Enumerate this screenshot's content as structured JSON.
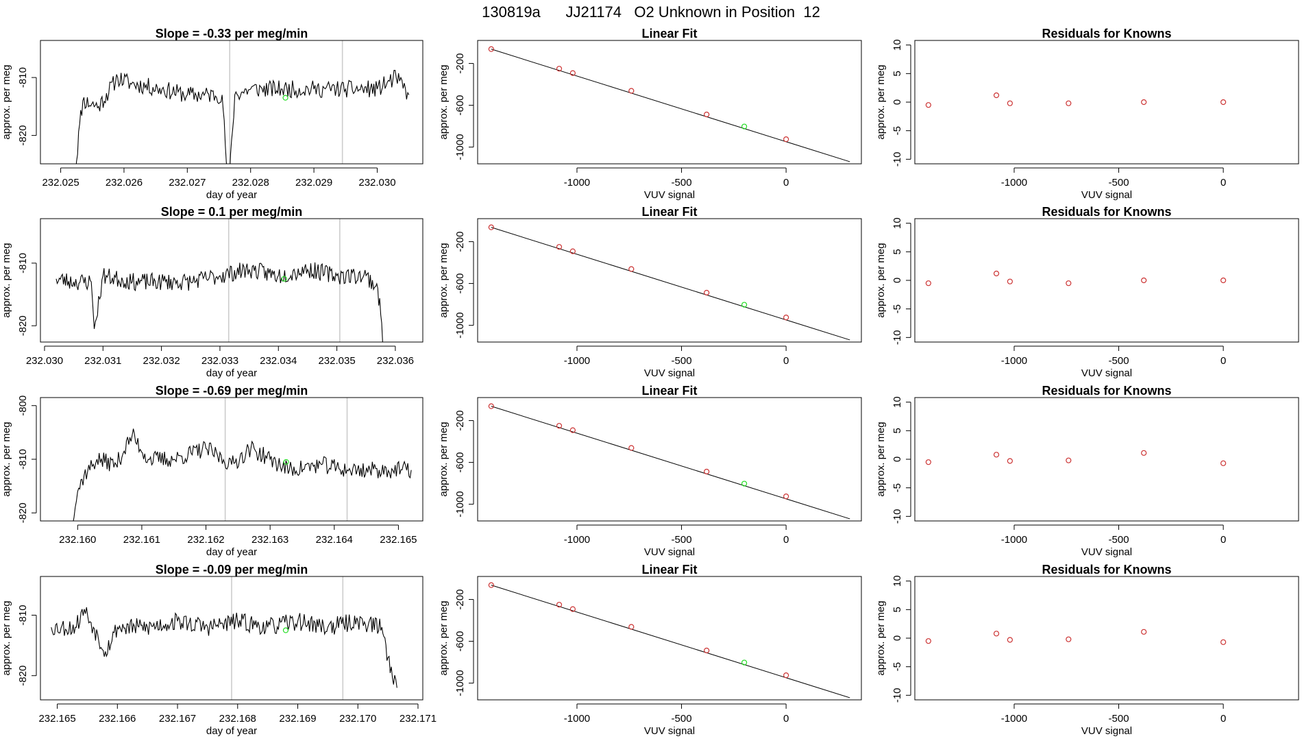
{
  "figure": {
    "title": "130819a      JJ21174   O2 Unknown in Position  12"
  },
  "chart_data": [
    {
      "type": "line",
      "panel": "time-series",
      "row": 0,
      "title": "Slope =  -0.33  per meg/min",
      "xlabel": "day of year",
      "ylabel": "approx. per meg",
      "xlim": [
        232.02468,
        232.03072
      ],
      "ylim": [
        -824.9,
        -803.6
      ],
      "x_ticks": [
        232.025,
        232.026,
        232.027,
        232.028,
        232.029,
        232.03
      ],
      "x_tick_labels": [
        "232.025",
        "232.026",
        "232.027",
        "232.028",
        "232.029",
        "232.030"
      ],
      "y_ticks": [
        -820,
        -810
      ],
      "y_tick_labels": [
        "-820",
        "-810"
      ],
      "gray_vlines": [
        232.02767,
        232.02945
      ],
      "trace_anchors": [
        [
          232.0252,
          -830
        ],
        [
          232.0253,
          -818
        ],
        [
          232.02535,
          -814
        ],
        [
          232.0256,
          -815
        ],
        [
          232.0259,
          -810
        ],
        [
          232.0261,
          -811
        ],
        [
          232.0266,
          -812
        ],
        [
          232.027,
          -813
        ],
        [
          232.02755,
          -813
        ],
        [
          232.02765,
          -830
        ],
        [
          232.02775,
          -813
        ],
        [
          232.028,
          -812
        ],
        [
          232.0285,
          -812
        ],
        [
          232.029,
          -812
        ],
        [
          232.0295,
          -812
        ],
        [
          232.03,
          -812
        ],
        [
          232.0303,
          -810
        ],
        [
          232.0305,
          -813
        ]
      ],
      "trace_seed": 11,
      "noise": 1.5,
      "marker": {
        "x": 232.02855,
        "y": -813.5,
        "color": "#22dd22"
      }
    },
    {
      "type": "scatter",
      "panel": "linear-fit",
      "row": 0,
      "title": "Linear Fit",
      "xlabel": "VUV signal",
      "ylabel": "approx. per meg",
      "xlim": [
        -1475,
        360
      ],
      "ylim": [
        -1160,
        20
      ],
      "x_ticks": [
        -1000,
        -500,
        0
      ],
      "x_tick_labels": [
        "-1000",
        "-500",
        "0"
      ],
      "y_ticks": [
        -1000,
        -600,
        -200
      ],
      "y_tick_labels": [
        "-1000",
        "-600",
        "-200"
      ],
      "fit_line": {
        "x": [
          -1410,
          305
        ],
        "y": [
          -63,
          -1140
        ]
      },
      "points": [
        {
          "x": -1410,
          "y": -63
        },
        {
          "x": -1085,
          "y": -250
        },
        {
          "x": -1020,
          "y": -292
        },
        {
          "x": -740,
          "y": -462
        },
        {
          "x": -380,
          "y": -688
        },
        {
          "x": -200,
          "y": -803
        },
        {
          "x": 0,
          "y": -925
        }
      ],
      "point_colors": [
        "#cc3333",
        "#cc3333",
        "#cc3333",
        "#cc3333",
        "#cc3333",
        "#22dd22",
        "#cc3333"
      ]
    },
    {
      "type": "scatter",
      "panel": "residuals",
      "row": 0,
      "title": "Residuals for Knowns",
      "xlabel": "VUV signal",
      "ylabel": "approx. per meg",
      "xlim": [
        -1475,
        360
      ],
      "ylim": [
        -10.8,
        10.8
      ],
      "x_ticks": [
        -1000,
        -500,
        0
      ],
      "x_tick_labels": [
        "-1000",
        "-500",
        "0"
      ],
      "y_ticks": [
        -10,
        -5,
        0,
        5,
        10
      ],
      "y_tick_labels": [
        "-10",
        "-5",
        "0",
        "5",
        "10"
      ],
      "points": [
        {
          "x": -1410,
          "y": -0.5
        },
        {
          "x": -1085,
          "y": 1.2
        },
        {
          "x": -1020,
          "y": -0.2
        },
        {
          "x": -740,
          "y": -0.2
        },
        {
          "x": -380,
          "y": 0.0
        },
        {
          "x": 0,
          "y": 0.0
        }
      ],
      "point_color": "#cc3333"
    },
    {
      "type": "line",
      "panel": "time-series",
      "row": 1,
      "title": "Slope =  0.1  per meg/min",
      "xlabel": "day of year",
      "ylabel": "approx. per meg",
      "xlim": [
        232.02993,
        232.03647
      ],
      "ylim": [
        -822.6,
        -802.9
      ],
      "x_ticks": [
        232.03,
        232.031,
        232.032,
        232.033,
        232.034,
        232.035,
        232.036
      ],
      "x_tick_labels": [
        "232.030",
        "232.031",
        "232.032",
        "232.033",
        "232.034",
        "232.035",
        "232.036"
      ],
      "y_ticks": [
        -820,
        -810
      ],
      "y_tick_labels": [
        "-820",
        "-810"
      ],
      "gray_vlines": [
        232.03315,
        232.03505
      ],
      "trace_anchors": [
        [
          232.0302,
          -812.5
        ],
        [
          232.0305,
          -813
        ],
        [
          232.0308,
          -813
        ],
        [
          232.03085,
          -820.5
        ],
        [
          232.031,
          -812
        ],
        [
          232.0315,
          -813
        ],
        [
          232.032,
          -813
        ],
        [
          232.0325,
          -813
        ],
        [
          232.033,
          -812
        ],
        [
          232.0335,
          -811
        ],
        [
          232.034,
          -812
        ],
        [
          232.0345,
          -811
        ],
        [
          232.035,
          -812
        ],
        [
          232.0355,
          -812
        ],
        [
          232.0357,
          -814
        ],
        [
          232.0358,
          -823
        ]
      ],
      "trace_seed": 23,
      "noise": 1.4,
      "marker": {
        "x": 232.0341,
        "y": -812.5,
        "color": "#22dd22"
      }
    },
    {
      "type": "scatter",
      "panel": "linear-fit",
      "row": 1,
      "title": "Linear Fit",
      "xlabel": "VUV signal",
      "ylabel": "approx. per meg",
      "xlim": [
        -1475,
        360
      ],
      "ylim": [
        -1160,
        20
      ],
      "x_ticks": [
        -1000,
        -500,
        0
      ],
      "x_tick_labels": [
        "-1000",
        "-500",
        "0"
      ],
      "y_ticks": [
        -1000,
        -600,
        -200
      ],
      "y_tick_labels": [
        "-1000",
        "-600",
        "-200"
      ],
      "fit_line": {
        "x": [
          -1410,
          305
        ],
        "y": [
          -63,
          -1140
        ]
      },
      "points": [
        {
          "x": -1410,
          "y": -63
        },
        {
          "x": -1085,
          "y": -250
        },
        {
          "x": -1020,
          "y": -292
        },
        {
          "x": -740,
          "y": -462
        },
        {
          "x": -380,
          "y": -688
        },
        {
          "x": -200,
          "y": -803
        },
        {
          "x": 0,
          "y": -925
        }
      ],
      "point_colors": [
        "#cc3333",
        "#cc3333",
        "#cc3333",
        "#cc3333",
        "#cc3333",
        "#22dd22",
        "#cc3333"
      ]
    },
    {
      "type": "scatter",
      "panel": "residuals",
      "row": 1,
      "title": "Residuals for Knowns",
      "xlabel": "VUV signal",
      "ylabel": "approx. per meg",
      "xlim": [
        -1475,
        360
      ],
      "ylim": [
        -10.8,
        10.8
      ],
      "x_ticks": [
        -1000,
        -500,
        0
      ],
      "x_tick_labels": [
        "-1000",
        "-500",
        "0"
      ],
      "y_ticks": [
        -10,
        -5,
        0,
        5,
        10
      ],
      "y_tick_labels": [
        "-10",
        "-5",
        "0",
        "5",
        "10"
      ],
      "points": [
        {
          "x": -1410,
          "y": -0.5
        },
        {
          "x": -1085,
          "y": 1.2
        },
        {
          "x": -1020,
          "y": -0.2
        },
        {
          "x": -740,
          "y": -0.5
        },
        {
          "x": -380,
          "y": 0.0
        },
        {
          "x": 0,
          "y": 0.0
        }
      ],
      "point_color": "#cc3333"
    },
    {
      "type": "line",
      "panel": "time-series",
      "row": 2,
      "title": "Slope =  -0.69  per meg/min",
      "xlabel": "day of year",
      "ylabel": "approx. per meg",
      "xlim": [
        232.15942,
        232.16538
      ],
      "ylim": [
        -821.5,
        -798.5
      ],
      "x_ticks": [
        232.16,
        232.161,
        232.162,
        232.163,
        232.164,
        232.165
      ],
      "x_tick_labels": [
        "232.160",
        "232.161",
        "232.162",
        "232.163",
        "232.164",
        "232.165"
      ],
      "y_ticks": [
        -820,
        -810,
        -800
      ],
      "y_tick_labels": [
        "-820",
        "-810",
        "-800"
      ],
      "gray_vlines": [
        232.1623,
        232.1642
      ],
      "trace_anchors": [
        [
          232.15985,
          -825
        ],
        [
          232.16,
          -816
        ],
        [
          232.1601,
          -813
        ],
        [
          232.1603,
          -810
        ],
        [
          232.1606,
          -811
        ],
        [
          232.16085,
          -805.5
        ],
        [
          232.1611,
          -810
        ],
        [
          232.1615,
          -810
        ],
        [
          232.162,
          -808
        ],
        [
          232.1624,
          -811
        ],
        [
          232.1627,
          -808
        ],
        [
          232.163,
          -810
        ],
        [
          232.1633,
          -812
        ],
        [
          232.1638,
          -811
        ],
        [
          232.1642,
          -812
        ],
        [
          232.1647,
          -812
        ],
        [
          232.1652,
          -812
        ]
      ],
      "trace_seed": 37,
      "noise": 1.6,
      "marker": {
        "x": 232.16325,
        "y": -810.5,
        "color": "#22dd22"
      }
    },
    {
      "type": "scatter",
      "panel": "linear-fit",
      "row": 2,
      "title": "Linear Fit",
      "xlabel": "VUV signal",
      "ylabel": "approx. per meg",
      "xlim": [
        -1475,
        360
      ],
      "ylim": [
        -1160,
        20
      ],
      "x_ticks": [
        -1000,
        -500,
        0
      ],
      "x_tick_labels": [
        "-1000",
        "-500",
        "0"
      ],
      "y_ticks": [
        -1000,
        -600,
        -200
      ],
      "y_tick_labels": [
        "-1000",
        "-600",
        "-200"
      ],
      "fit_line": {
        "x": [
          -1410,
          305
        ],
        "y": [
          -63,
          -1140
        ]
      },
      "points": [
        {
          "x": -1410,
          "y": -63
        },
        {
          "x": -1085,
          "y": -250
        },
        {
          "x": -1020,
          "y": -292
        },
        {
          "x": -740,
          "y": -462
        },
        {
          "x": -380,
          "y": -688
        },
        {
          "x": -200,
          "y": -803
        },
        {
          "x": 0,
          "y": -925
        }
      ],
      "point_colors": [
        "#cc3333",
        "#cc3333",
        "#cc3333",
        "#cc3333",
        "#cc3333",
        "#22dd22",
        "#cc3333"
      ]
    },
    {
      "type": "scatter",
      "panel": "residuals",
      "row": 2,
      "title": "Residuals for Knowns",
      "xlabel": "VUV signal",
      "ylabel": "approx. per meg",
      "xlim": [
        -1475,
        360
      ],
      "ylim": [
        -10.8,
        10.8
      ],
      "x_ticks": [
        -1000,
        -500,
        0
      ],
      "x_tick_labels": [
        "-1000",
        "-500",
        "0"
      ],
      "y_ticks": [
        -10,
        -5,
        0,
        5,
        10
      ],
      "y_tick_labels": [
        "-10",
        "-5",
        "0",
        "5",
        "10"
      ],
      "points": [
        {
          "x": -1410,
          "y": -0.5
        },
        {
          "x": -1085,
          "y": 0.8
        },
        {
          "x": -1020,
          "y": -0.3
        },
        {
          "x": -740,
          "y": -0.2
        },
        {
          "x": -380,
          "y": 1.1
        },
        {
          "x": 0,
          "y": -0.7
        }
      ],
      "point_color": "#cc3333"
    },
    {
      "type": "line",
      "panel": "time-series",
      "row": 3,
      "title": "Slope =  -0.09  per meg/min",
      "xlabel": "day of year",
      "ylabel": "approx. per meg",
      "xlim": [
        232.16472,
        232.17108
      ],
      "ylim": [
        -824.0,
        -803.6
      ],
      "x_ticks": [
        232.165,
        232.166,
        232.167,
        232.168,
        232.169,
        232.17,
        232.171
      ],
      "x_tick_labels": [
        "232.165",
        "232.166",
        "232.167",
        "232.168",
        "232.169",
        "232.170",
        "232.171"
      ],
      "y_ticks": [
        -820,
        -810
      ],
      "y_tick_labels": [
        "-820",
        "-810"
      ],
      "gray_vlines": [
        232.1679,
        232.16975
      ],
      "trace_anchors": [
        [
          232.1649,
          -812
        ],
        [
          232.1653,
          -812
        ],
        [
          232.16545,
          -809
        ],
        [
          232.1656,
          -812
        ],
        [
          232.1658,
          -816
        ],
        [
          232.166,
          -812
        ],
        [
          232.1665,
          -812
        ],
        [
          232.167,
          -811
        ],
        [
          232.1675,
          -812
        ],
        [
          232.168,
          -811
        ],
        [
          232.1685,
          -812
        ],
        [
          232.169,
          -811
        ],
        [
          232.1695,
          -812
        ],
        [
          232.17,
          -811
        ],
        [
          232.1704,
          -812
        ],
        [
          232.1705,
          -817
        ],
        [
          232.17065,
          -822
        ]
      ],
      "trace_seed": 53,
      "noise": 1.5,
      "marker": {
        "x": 232.1688,
        "y": -812.5,
        "color": "#22dd22"
      }
    },
    {
      "type": "scatter",
      "panel": "linear-fit",
      "row": 3,
      "title": "Linear Fit",
      "xlabel": "VUV signal",
      "ylabel": "approx. per meg",
      "xlim": [
        -1475,
        360
      ],
      "ylim": [
        -1160,
        20
      ],
      "x_ticks": [
        -1000,
        -500,
        0
      ],
      "x_tick_labels": [
        "-1000",
        "-500",
        "0"
      ],
      "y_ticks": [
        -1000,
        -600,
        -200
      ],
      "y_tick_labels": [
        "-1000",
        "-600",
        "-200"
      ],
      "fit_line": {
        "x": [
          -1410,
          305
        ],
        "y": [
          -63,
          -1140
        ]
      },
      "points": [
        {
          "x": -1410,
          "y": -63
        },
        {
          "x": -1085,
          "y": -250
        },
        {
          "x": -1020,
          "y": -292
        },
        {
          "x": -740,
          "y": -462
        },
        {
          "x": -380,
          "y": -688
        },
        {
          "x": -200,
          "y": -803
        },
        {
          "x": 0,
          "y": -925
        }
      ],
      "point_colors": [
        "#cc3333",
        "#cc3333",
        "#cc3333",
        "#cc3333",
        "#cc3333",
        "#22dd22",
        "#cc3333"
      ]
    },
    {
      "type": "scatter",
      "panel": "residuals",
      "row": 3,
      "title": "Residuals for Knowns",
      "xlabel": "VUV signal",
      "ylabel": "approx. per meg",
      "xlim": [
        -1475,
        360
      ],
      "ylim": [
        -10.8,
        10.8
      ],
      "x_ticks": [
        -1000,
        -500,
        0
      ],
      "x_tick_labels": [
        "-1000",
        "-500",
        "0"
      ],
      "y_ticks": [
        -10,
        -5,
        0,
        5,
        10
      ],
      "y_tick_labels": [
        "-10",
        "-5",
        "0",
        "5",
        "10"
      ],
      "points": [
        {
          "x": -1410,
          "y": -0.5
        },
        {
          "x": -1085,
          "y": 0.8
        },
        {
          "x": -1020,
          "y": -0.3
        },
        {
          "x": -740,
          "y": -0.2
        },
        {
          "x": -380,
          "y": 1.1
        },
        {
          "x": 0,
          "y": -0.7
        }
      ],
      "point_color": "#cc3333"
    }
  ]
}
